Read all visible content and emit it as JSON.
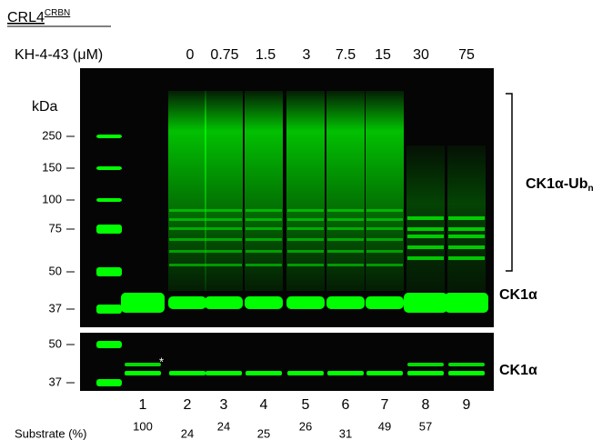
{
  "header": {
    "title": "CRL4",
    "title_superscript": "CRBN"
  },
  "treatment": {
    "label": "KH-4-43 (μM)",
    "concentrations": [
      0,
      0.75,
      1.5,
      3,
      7.5,
      15,
      30,
      75
    ]
  },
  "markers": {
    "unit": "kDa",
    "top": [
      250,
      150,
      100,
      75,
      50,
      37
    ],
    "bottom": [
      50,
      37
    ]
  },
  "annotations": {
    "ub_label": "CK1α-Ub",
    "ub_subscript": "n",
    "band_label_top": "CK1α",
    "band_label_bottom": "CK1α",
    "asterisk": "*"
  },
  "lanes": {
    "numbers": [
      1,
      2,
      3,
      4,
      5,
      6,
      7,
      8,
      9
    ],
    "substrate_label": "Substrate (%)",
    "substrate_values": [
      100,
      24,
      24,
      25,
      26,
      31,
      49,
      57
    ]
  }
}
